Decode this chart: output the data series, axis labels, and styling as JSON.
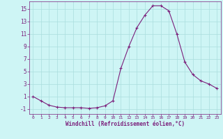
{
  "x": [
    0,
    1,
    2,
    3,
    4,
    5,
    6,
    7,
    8,
    9,
    10,
    11,
    12,
    13,
    14,
    15,
    16,
    17,
    18,
    19,
    20,
    21,
    22,
    23
  ],
  "y": [
    1.0,
    0.3,
    -0.4,
    -0.7,
    -0.8,
    -0.8,
    -0.8,
    -0.9,
    -0.8,
    -0.5,
    0.3,
    5.5,
    9.0,
    12.0,
    14.0,
    15.5,
    15.5,
    14.7,
    11.0,
    6.5,
    4.5,
    3.5,
    3.0,
    2.3
  ],
  "line_color": "#7B1F7B",
  "marker": "+",
  "marker_color": "#7B1F7B",
  "bg_color": "#cef5f5",
  "grid_color": "#aadddd",
  "xlabel": "Windchill (Refroidissement éolien,°C)",
  "xlabel_color": "#7B1F7B",
  "tick_color": "#7B1F7B",
  "ylim": [
    -1.8,
    16.2
  ],
  "xlim": [
    -0.5,
    23.5
  ],
  "yticks": [
    -1,
    1,
    3,
    5,
    7,
    9,
    11,
    13,
    15
  ],
  "xticks": [
    0,
    1,
    2,
    3,
    4,
    5,
    6,
    7,
    8,
    9,
    10,
    11,
    12,
    13,
    14,
    15,
    16,
    17,
    18,
    19,
    20,
    21,
    22,
    23
  ]
}
